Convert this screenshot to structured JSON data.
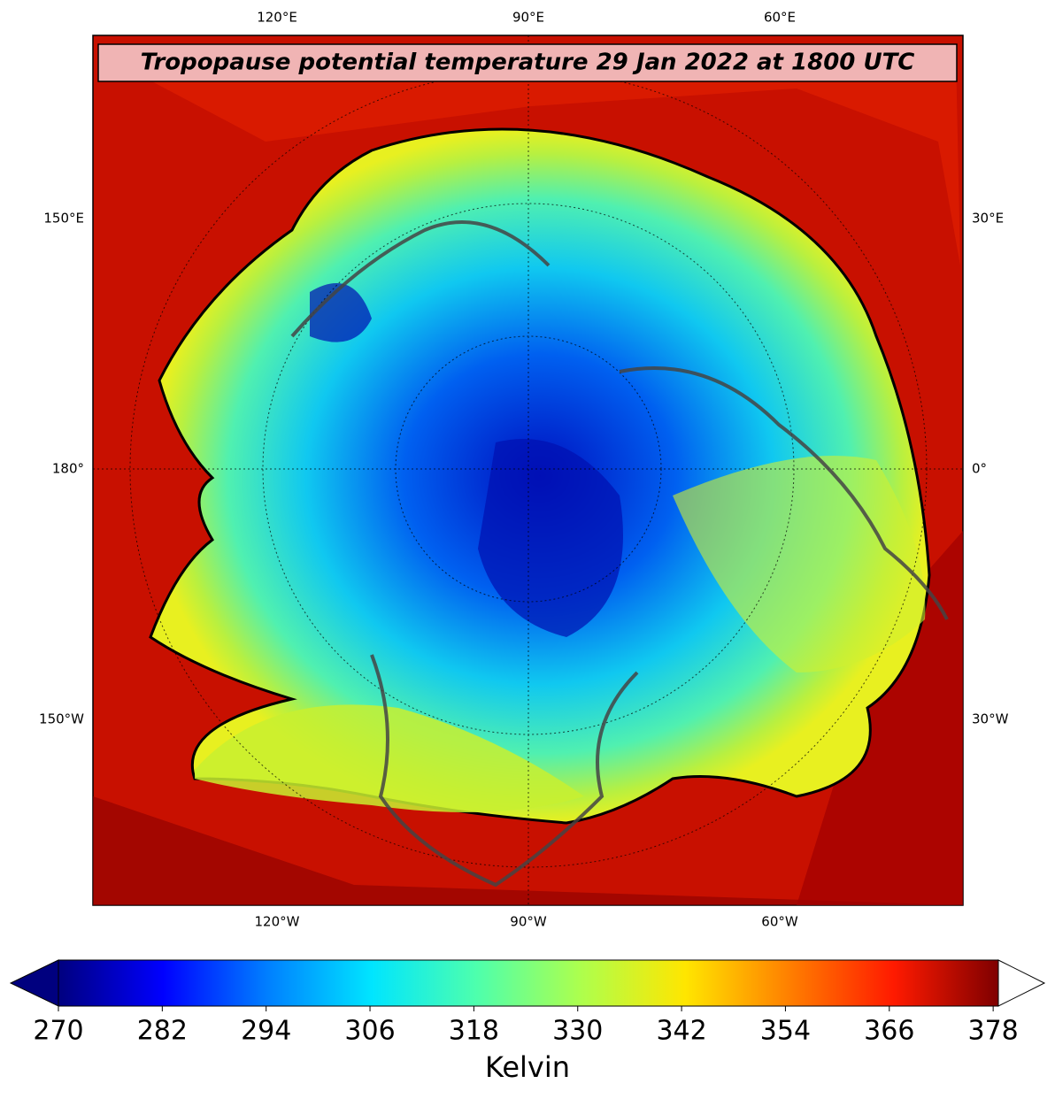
{
  "title": "Tropopause potential temperature 29 Jan 2022 at 1800 UTC",
  "map": {
    "top_labels": [
      "120°E",
      "90°E",
      "60°E"
    ],
    "bottom_labels": [
      "120°W",
      "90°W",
      "60°W"
    ],
    "left_labels": [
      "150°E",
      "180°",
      "150°W"
    ],
    "right_labels": [
      "30°E",
      "0°",
      "30°W"
    ]
  },
  "colorbar": {
    "label": "Kelvin",
    "lim": [
      270,
      378.6
    ],
    "ticks": [
      270,
      282,
      294,
      306,
      318,
      330,
      342,
      354,
      366,
      378
    ],
    "colors": [
      "#00007f",
      "#0000ff",
      "#007fff",
      "#00e5ff",
      "#4dffad",
      "#adff4d",
      "#ffe600",
      "#ff7f00",
      "#ff1a00",
      "#7f0000"
    ]
  }
}
